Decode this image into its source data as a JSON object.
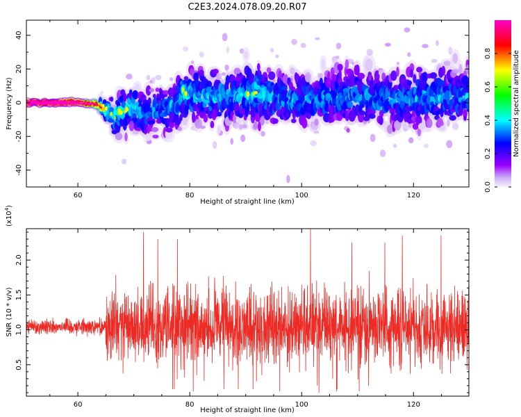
{
  "figure": {
    "title": "C2E3.2024.078.09.20.R07"
  },
  "chart_data": [
    {
      "type": "heatmap",
      "panel": "spectrogram",
      "xlabel": "Height of straight line (km)",
      "ylabel": "Frequency (Hz)",
      "xlim": [
        50.8,
        129.9
      ],
      "ylim": [
        -50,
        49
      ],
      "x_ticks": [
        "60",
        "80",
        "100",
        "120"
      ],
      "x_tick_values": [
        60,
        80,
        100,
        120
      ],
      "y_ticks": [
        "40",
        "20",
        "0",
        "-20",
        "-40"
      ],
      "y_tick_values": [
        40,
        20,
        0,
        -20,
        -40
      ],
      "colorbar": {
        "label": "Normalized spectral amplitude",
        "range": [
          0.0,
          1.0
        ],
        "ticks": [
          "0.0",
          "0.2",
          "0.4",
          "0.6",
          "0.8"
        ],
        "tick_values": [
          0.0,
          0.2,
          0.4,
          0.6,
          0.8
        ],
        "colors": [
          "#f7f0fb",
          "#9a00ff",
          "#0000ff",
          "#00ffff",
          "#00ff00",
          "#ffff00",
          "#ff0000",
          "#ff00cc"
        ]
      },
      "ridge": {
        "description_points_x": [
          51.5,
          56,
          60,
          63.5,
          65,
          66.5,
          69,
          72,
          75,
          77.5,
          79,
          83,
          88,
          92,
          97,
          102,
          107,
          112,
          117,
          122,
          127,
          129.9
        ],
        "description_points_y": [
          0,
          0,
          0,
          -1,
          -4,
          -8,
          -3,
          -6,
          -4,
          -2,
          6,
          3,
          4,
          6,
          2,
          1,
          4,
          3,
          2,
          4,
          3,
          4
        ],
        "spread_hz": [
          3,
          3,
          3,
          3,
          5,
          9,
          10,
          10,
          10,
          11,
          12,
          12,
          13,
          13,
          12,
          12,
          13,
          13,
          12,
          13,
          13,
          13
        ],
        "amplitude": [
          0.95,
          0.95,
          0.85,
          0.7,
          0.45,
          0.4,
          0.42,
          0.35,
          0.32,
          0.35,
          0.4,
          0.36,
          0.34,
          0.4,
          0.33,
          0.34,
          0.35,
          0.33,
          0.32,
          0.35,
          0.33,
          0.34
        ]
      },
      "grid": false
    },
    {
      "type": "line",
      "panel": "snr",
      "xlabel": "Height of straight line (km)",
      "ylabel": "SNR (10 * v/v)",
      "y_multiplier_label": "(x10",
      "y_multiplier_exp": "4",
      "y_multiplier_close": ")",
      "xlim": [
        50.8,
        129.9
      ],
      "ylim": [
        0.05,
        2.45
      ],
      "x_ticks": [
        "60",
        "80",
        "100",
        "120"
      ],
      "x_tick_values": [
        60,
        80,
        100,
        120
      ],
      "y_ticks": [
        "0.5",
        "1.0",
        "1.5",
        "2.0"
      ],
      "y_tick_values": [
        0.5,
        1.0,
        1.5,
        2.0
      ],
      "series": [
        {
          "color": "#ee2a24",
          "baseline": 1.05,
          "segments": [
            {
              "x_start": 50.8,
              "x_end": 65.0,
              "half_range": 0.12
            },
            {
              "x_start": 65.0,
              "x_end": 129.9,
              "half_range": 0.6
            }
          ],
          "peak_values": [
            2.25,
            2.35,
            2.25,
            2.3,
            2.4,
            2.35,
            2.45,
            2.3,
            2.35,
            2.3
          ],
          "trough_values": [
            0.2,
            0.12,
            0.2,
            0.15,
            0.12,
            0.1,
            0.15,
            0.2
          ]
        }
      ],
      "grid": false
    }
  ]
}
